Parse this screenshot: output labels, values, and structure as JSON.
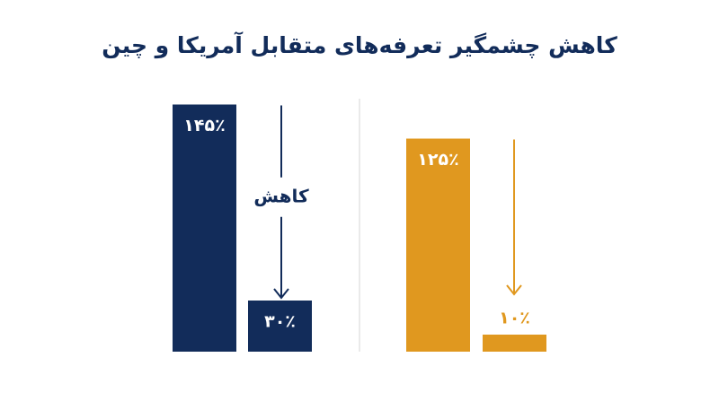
{
  "title": "کاهش چشمگیر تعرفه‌های متقابل آمریکا و چین",
  "chart_data": [
    {
      "type": "bar",
      "values": [
        145,
        30
      ],
      "value_labels": [
        "۱۴۵٪",
        "۳۰٪"
      ],
      "color": "#122c5a",
      "annotation": "کاهش"
    },
    {
      "type": "bar",
      "values": [
        125,
        10
      ],
      "value_labels": [
        "۱۲۵٪",
        "۱۰٪"
      ],
      "color": "#e0981f"
    }
  ]
}
